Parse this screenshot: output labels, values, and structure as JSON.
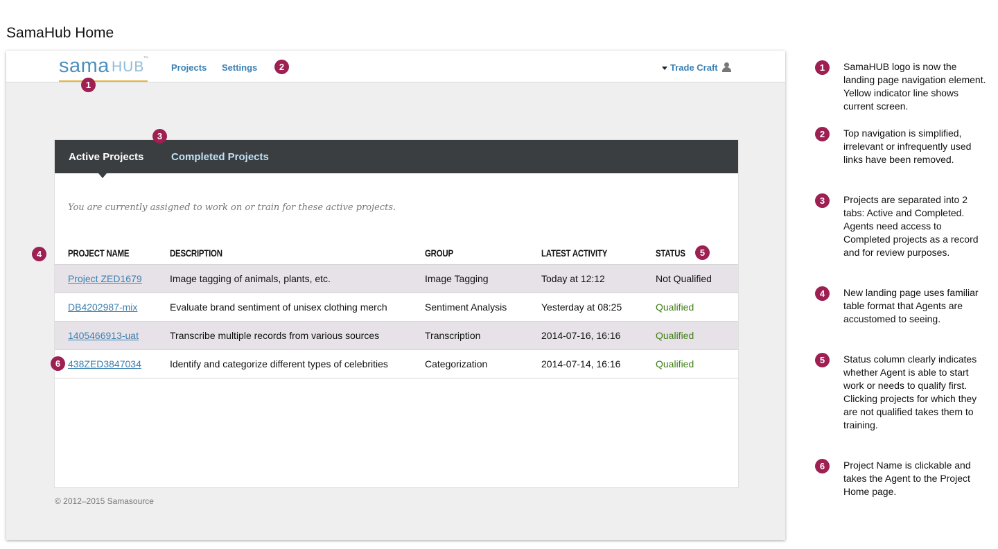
{
  "page_title": "SamaHub Home",
  "logo": {
    "sama": "sama",
    "hub": "HUB",
    "tm": "™"
  },
  "nav": {
    "projects": "Projects",
    "settings": "Settings"
  },
  "user": {
    "name": "Trade Craft"
  },
  "tabs": {
    "active": "Active Projects",
    "completed": "Completed Projects"
  },
  "intro_text": "You are currently assigned to work on or train for these active projects.",
  "table": {
    "headers": {
      "name": "PROJECT NAME",
      "description": "DESCRIPTION",
      "group": "GROUP",
      "activity": "LATEST ACTIVITY",
      "status": "STATUS"
    },
    "rows": [
      {
        "name": "Project ZED1679",
        "description": "Image tagging of animals, plants, etc.",
        "group": "Image Tagging",
        "activity": "Today at 12:12",
        "status": "Not Qualified"
      },
      {
        "name": "DB4202987-mix",
        "description": "Evaluate brand sentiment of unisex clothing merch",
        "group": "Sentiment Analysis",
        "activity": "Yesterday at 08:25",
        "status": "Qualified"
      },
      {
        "name": "1405466913-uat",
        "description": "Transcribe multiple records from various sources",
        "group": "Transcription",
        "activity": "2014-07-16, 16:16",
        "status": "Qualified"
      },
      {
        "name": "438ZED3847034",
        "description": "Identify and categorize different types of celebrities",
        "group": "Categorization",
        "activity": "2014-07-14, 16:16",
        "status": "Qualified"
      }
    ]
  },
  "footer": "© 2012–2015 Samasource",
  "badges": [
    "1",
    "2",
    "3",
    "4",
    "5",
    "6"
  ],
  "notes": [
    "SamaHUB logo is now the landing page navigation element. Yellow indicator line shows current screen.",
    "Top navigation is simplified, irrelevant or infrequently used links have been removed.",
    "Projects are separated into 2 tabs: Active and Completed. Agents need access to Completed projects as a record and for review purposes.",
    "New landing page uses familiar table format that Agents are accustomed to seeing.",
    "Status column clearly indicates whether Agent is able to start work or needs to qualify first. Clicking projects for which they are not qualified takes them to training.",
    "Project Name is clickable and takes the Agent to the Project Home page."
  ],
  "colors": {
    "accent": "#3a7fb1",
    "badge": "#9e1f52",
    "indicator": "#e4b43f",
    "tabbar": "#3b3e40",
    "qualified": "#3f7f16",
    "row_shade": "#e7e2e8"
  }
}
